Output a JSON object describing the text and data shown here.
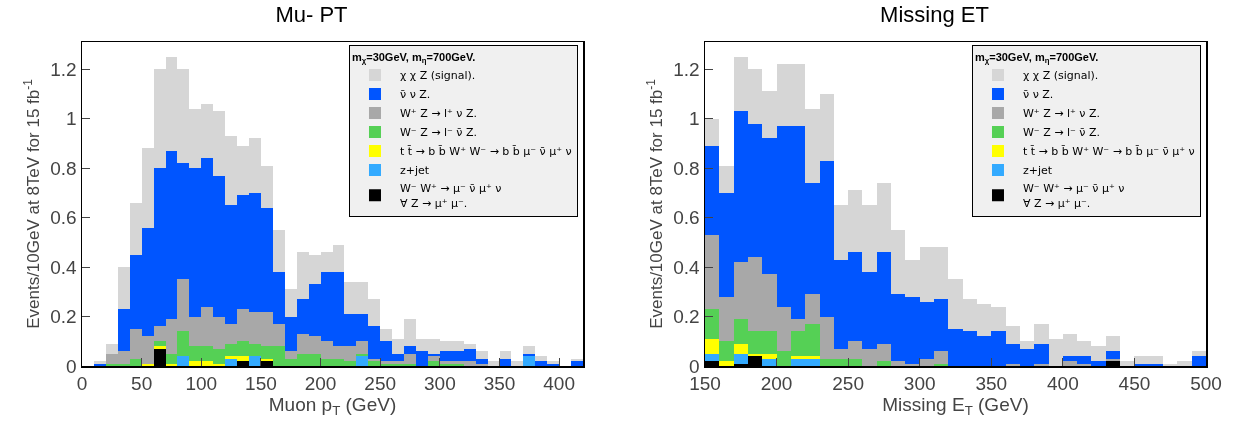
{
  "chart_data": [
    {
      "type": "bar",
      "title": "Mu- PT",
      "xlabel": "Muon p$_{T}$ (GeV)",
      "ylabel": "Events/10GeV at 8TeV for 15 fb$^{-1}$",
      "legend_title": "m$_{χ}$=30GeV, m$_{η}$=700GeV.",
      "legend": "top right",
      "stacked": true,
      "x": [
        5,
        15,
        25,
        35,
        45,
        55,
        65,
        75,
        85,
        95,
        105,
        115,
        125,
        135,
        145,
        155,
        165,
        175,
        185,
        195,
        205,
        215,
        225,
        235,
        245,
        255,
        265,
        275,
        285,
        295,
        305,
        315,
        325,
        335,
        345,
        355,
        365,
        375,
        385,
        395,
        405,
        415
      ],
      "xlim": [
        0,
        420
      ],
      "xticks": [
        0,
        50,
        100,
        150,
        200,
        250,
        300,
        350,
        400
      ],
      "ylim": [
        0,
        1.31
      ],
      "yticks": [
        0,
        0.2,
        0.4,
        0.6,
        0.8,
        1,
        1.2
      ],
      "series": [
        {
          "name": "W⁻ W⁺ → μ⁻ ν̄ μ⁺ ν\n∀ Z → μ⁺ μ⁻.",
          "color": "#000000",
          "values": [
            0,
            0,
            0,
            0,
            0,
            0,
            0.07,
            0,
            0,
            0,
            0,
            0,
            0,
            0.02,
            0,
            0.02,
            0,
            0,
            0,
            0,
            0,
            0,
            0,
            0,
            0,
            0,
            0,
            0,
            0,
            0,
            0,
            0,
            0,
            0,
            0,
            0,
            0,
            0,
            0,
            0,
            0,
            0
          ]
        },
        {
          "name": "z+jet",
          "color": "#33aaff",
          "values": [
            0,
            0,
            0,
            0,
            0,
            0,
            0,
            0,
            0.04,
            0,
            0,
            0,
            0.03,
            0,
            0.04,
            0,
            0,
            0,
            0,
            0,
            0,
            0,
            0,
            0.04,
            0,
            0,
            0,
            0,
            0,
            0,
            0,
            0,
            0,
            0,
            0,
            0,
            0,
            0.04,
            0,
            0,
            0,
            0
          ]
        },
        {
          "name": "t t̄ → b b̄ W⁺ W⁻ → b b̄ μ⁻ ν̄ μ⁺ ν",
          "color": "#ffff00",
          "values": [
            0,
            0,
            0,
            0,
            0,
            0.01,
            0.01,
            0.01,
            0,
            0.02,
            0.02,
            0.01,
            0.01,
            0.02,
            0,
            0.01,
            0,
            0,
            0,
            0,
            0,
            0,
            0,
            0,
            0,
            0,
            0,
            0,
            0,
            0,
            0,
            0,
            0,
            0,
            0,
            0,
            0,
            0,
            0,
            0,
            0,
            0
          ]
        },
        {
          "name": "W⁻ Z → l⁻ ν̄ Z.",
          "color": "#55d055",
          "values": [
            0,
            0,
            0.01,
            0.01,
            0.03,
            0,
            0.02,
            0.04,
            0.1,
            0.06,
            0.06,
            0.06,
            0.05,
            0.06,
            0.05,
            0.05,
            0.08,
            0.03,
            0.05,
            0.05,
            0.03,
            0.03,
            0.02,
            0.01,
            0.02,
            0.01,
            0.01,
            0.01,
            0,
            0.02,
            0.01,
            0.01,
            0,
            0,
            0,
            0,
            0,
            0,
            0,
            0,
            0,
            0
          ]
        },
        {
          "name": "W⁺ Z → l⁺ ν Z.",
          "color": "#a8a8a8",
          "values": [
            0,
            0,
            0.04,
            0.05,
            0.12,
            0.11,
            0.06,
            0.14,
            0.21,
            0.12,
            0.16,
            0.13,
            0.08,
            0.13,
            0.13,
            0.14,
            0.09,
            0.03,
            0.08,
            0.07,
            0.07,
            0.05,
            0.06,
            0.05,
            0.01,
            0.01,
            0.01,
            0.04,
            0,
            0.02,
            0.01,
            0.01,
            0.02,
            0.01,
            0,
            0,
            0,
            0,
            0,
            0,
            0,
            0
          ]
        },
        {
          "name": "ν̄ ν Z.",
          "color": "#0055ff",
          "values": [
            0,
            0.01,
            0,
            0.17,
            0.3,
            0.44,
            0.64,
            0.68,
            0.47,
            0.6,
            0.6,
            0.57,
            0.48,
            0.46,
            0.48,
            0.42,
            0.21,
            0.14,
            0.14,
            0.21,
            0.28,
            0.3,
            0.13,
            0.11,
            0.13,
            0.08,
            0.03,
            0.03,
            0.06,
            0.01,
            0.04,
            0.04,
            0.05,
            0.02,
            0,
            0.03,
            0,
            0.01,
            0.02,
            0.01,
            0,
            0.02
          ]
        },
        {
          "name": "χ χ Z (signal).",
          "color": "#d6d6d6",
          "values": [
            0,
            0.01,
            0.04,
            0.17,
            0.21,
            0.32,
            0.4,
            0.38,
            0.38,
            0.24,
            0.22,
            0.26,
            0.28,
            0.2,
            0.22,
            0.17,
            0.17,
            0.11,
            0.19,
            0.12,
            0.08,
            0.11,
            0.13,
            0.13,
            0.11,
            0.05,
            0.06,
            0.11,
            0.05,
            0.06,
            0.04,
            0.04,
            0.02,
            0.03,
            0.02,
            0.03,
            0.02,
            0.03,
            0.02,
            0.01,
            0,
            0.01
          ]
        }
      ]
    },
    {
      "type": "bar",
      "title": "Missing ET",
      "xlabel": "Missing E$_{T}$ (GeV)",
      "ylabel": "Events/10GeV at 8TeV for 15 fb$^{-1}$",
      "legend_title": "m$_{χ}$=30GeV, m$_{η}$=700GeV.",
      "legend": "top right",
      "stacked": true,
      "x": [
        155,
        165,
        175,
        185,
        195,
        205,
        215,
        225,
        235,
        245,
        255,
        265,
        275,
        285,
        295,
        305,
        315,
        325,
        335,
        345,
        355,
        365,
        375,
        385,
        395,
        405,
        415,
        425,
        435,
        445,
        455,
        465,
        475,
        485,
        495
      ],
      "xlim": [
        150,
        500
      ],
      "xticks": [
        150,
        200,
        250,
        300,
        350,
        400,
        450,
        500
      ],
      "ylim": [
        0,
        1.31
      ],
      "yticks": [
        0,
        0.2,
        0.4,
        0.6,
        0.8,
        1,
        1.2
      ],
      "series": [
        {
          "name": "W⁻ W⁺ → μ⁻ ν̄ μ⁺ ν\n∀ Z → μ⁺ μ⁻.",
          "color": "#000000",
          "values": [
            0.02,
            0,
            0.01,
            0.04,
            0,
            0,
            0,
            0,
            0,
            0,
            0,
            0,
            0,
            0,
            0,
            0,
            0,
            0,
            0,
            0,
            0,
            0,
            0,
            0,
            0,
            0,
            0,
            0,
            0.02,
            0,
            0,
            0,
            0,
            0,
            0
          ]
        },
        {
          "name": "z+jet",
          "color": "#33aaff",
          "values": [
            0.03,
            0,
            0.04,
            0,
            0.03,
            0,
            0.03,
            0.03,
            0,
            0,
            0,
            0,
            0,
            0,
            0,
            0,
            0,
            0,
            0,
            0,
            0,
            0,
            0,
            0,
            0,
            0,
            0,
            0,
            0,
            0,
            0,
            0,
            0,
            0,
            0
          ]
        },
        {
          "name": "t t̄ → b b̄ W⁺ W⁻ → b b̄ μ⁻ ν̄ μ⁺ ν",
          "color": "#ffff00",
          "values": [
            0.06,
            0.02,
            0.04,
            0.01,
            0.02,
            0,
            0.01,
            0.01,
            0,
            0,
            0,
            0,
            0,
            0,
            0,
            0,
            0,
            0,
            0,
            0,
            0,
            0,
            0,
            0,
            0,
            0,
            0,
            0,
            0,
            0,
            0,
            0,
            0,
            0,
            0
          ]
        },
        {
          "name": "W⁻ Z → l⁻ ν̄ Z.",
          "color": "#55d055",
          "values": [
            0.12,
            0.08,
            0.1,
            0.09,
            0.09,
            0.06,
            0.1,
            0.13,
            0.03,
            0.03,
            0.03,
            0,
            0.02,
            0,
            0,
            0,
            0.01,
            0,
            0,
            0,
            0,
            0,
            0,
            0,
            0,
            0,
            0,
            0,
            0,
            0,
            0,
            0,
            0,
            0,
            0
          ]
        },
        {
          "name": "W⁺ Z → l⁺ ν Z.",
          "color": "#a8a8a8",
          "values": [
            0.3,
            0.18,
            0.23,
            0.3,
            0.23,
            0.18,
            0.05,
            0.12,
            0.17,
            0.04,
            0.07,
            0.07,
            0.07,
            0.02,
            0.01,
            0.03,
            0.05,
            0,
            0,
            0,
            0,
            0.01,
            0,
            0.01,
            0,
            0.02,
            0.01,
            0,
            0.01,
            0,
            0,
            0,
            0,
            0,
            0
          ]
        },
        {
          "name": "ν̄ ν Z.",
          "color": "#0055ff",
          "values": [
            0.36,
            0.42,
            0.61,
            0.54,
            0.55,
            0.73,
            0.78,
            0.45,
            0.63,
            0.36,
            0.36,
            0.31,
            0.37,
            0.27,
            0.27,
            0.23,
            0.21,
            0.15,
            0.14,
            0.12,
            0.14,
            0.08,
            0.07,
            0.08,
            0,
            0.02,
            0.03,
            0.02,
            0.03,
            0,
            0.01,
            0.01,
            0,
            0,
            0.04
          ]
        },
        {
          "name": "χ χ Z (signal).",
          "color": "#d6d6d6",
          "values": [
            0.11,
            0.11,
            0.22,
            0.22,
            0.19,
            0.25,
            0.25,
            0.3,
            0.27,
            0.22,
            0.25,
            0.27,
            0.28,
            0.26,
            0.15,
            0.22,
            0.21,
            0.2,
            0.13,
            0.13,
            0.1,
            0.07,
            0.03,
            0.08,
            0.11,
            0.09,
            0.06,
            0.06,
            0.06,
            0.02,
            0.03,
            0.03,
            0.01,
            0.02,
            0.02
          ]
        }
      ]
    }
  ]
}
